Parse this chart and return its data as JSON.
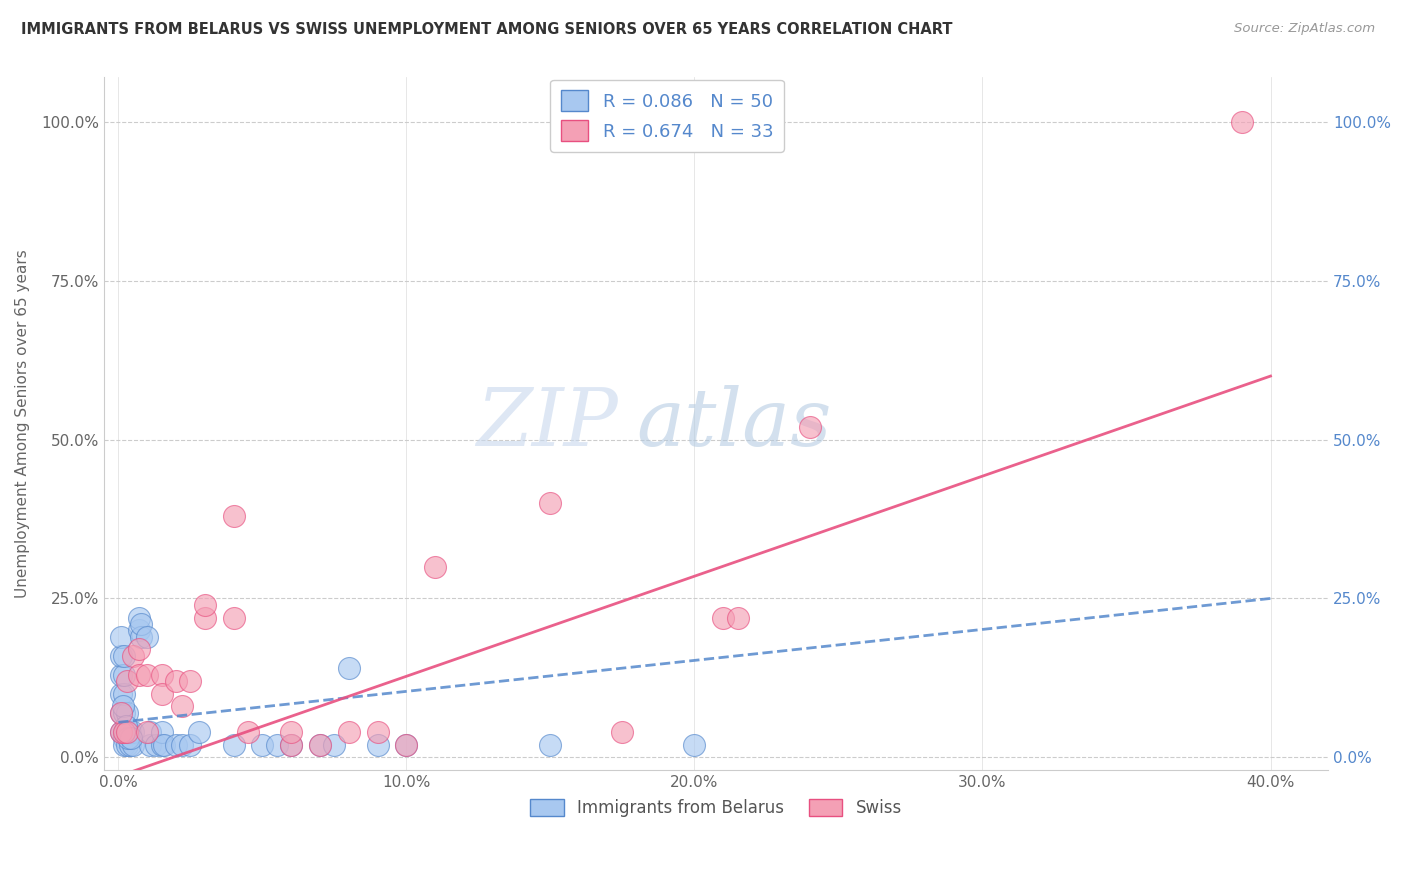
{
  "title": "IMMIGRANTS FROM BELARUS VS SWISS UNEMPLOYMENT AMONG SENIORS OVER 65 YEARS CORRELATION CHART",
  "source": "Source: ZipAtlas.com",
  "ylabel": "Unemployment Among Seniors over 65 years",
  "xlabel_ticks": [
    "0.0%",
    "10.0%",
    "20.0%",
    "30.0%",
    "40.0%"
  ],
  "xlabel_vals": [
    0.0,
    10.0,
    20.0,
    30.0,
    40.0
  ],
  "ylabel_ticks": [
    "0.0%",
    "25.0%",
    "50.0%",
    "75.0%",
    "100.0%"
  ],
  "ylabel_vals": [
    0.0,
    25.0,
    50.0,
    75.0,
    100.0
  ],
  "xlim": [
    -0.5,
    42.0
  ],
  "ylim": [
    -2.0,
    107.0
  ],
  "watermark_zip": "ZIP",
  "watermark_atlas": "atlas",
  "legend_label_blue": "Immigrants from Belarus",
  "legend_label_pink": "Swiss",
  "R_blue": "0.086",
  "N_blue": "50",
  "R_pink": "0.674",
  "N_pink": "33",
  "blue_color": "#A8C8F0",
  "pink_color": "#F4A0B5",
  "blue_edge_color": "#5588CC",
  "pink_edge_color": "#E85080",
  "blue_line_color": "#5588CC",
  "pink_line_color": "#E85080",
  "right_axis_color": "#5588CC",
  "blue_scatter": [
    [
      0.1,
      4.0
    ],
    [
      0.1,
      7.0
    ],
    [
      0.1,
      10.0
    ],
    [
      0.1,
      13.0
    ],
    [
      0.1,
      16.0
    ],
    [
      0.1,
      19.0
    ],
    [
      0.2,
      4.0
    ],
    [
      0.2,
      7.0
    ],
    [
      0.2,
      10.0
    ],
    [
      0.2,
      13.0
    ],
    [
      0.2,
      16.0
    ],
    [
      0.2,
      3.0
    ],
    [
      0.2,
      2.0
    ],
    [
      0.3,
      4.0
    ],
    [
      0.3,
      7.0
    ],
    [
      0.3,
      2.0
    ],
    [
      0.4,
      2.0
    ],
    [
      0.4,
      4.0
    ],
    [
      0.5,
      2.0
    ],
    [
      0.5,
      4.0
    ],
    [
      0.7,
      20.0
    ],
    [
      0.7,
      22.0
    ],
    [
      0.8,
      19.0
    ],
    [
      0.8,
      21.0
    ],
    [
      1.0,
      19.0
    ],
    [
      1.1,
      2.0
    ],
    [
      1.1,
      4.0
    ],
    [
      1.3,
      2.0
    ],
    [
      1.5,
      2.0
    ],
    [
      1.5,
      4.0
    ],
    [
      1.6,
      2.0
    ],
    [
      2.0,
      2.0
    ],
    [
      2.2,
      2.0
    ],
    [
      2.5,
      2.0
    ],
    [
      2.8,
      4.0
    ],
    [
      4.0,
      2.0
    ],
    [
      5.0,
      2.0
    ],
    [
      5.5,
      2.0
    ],
    [
      6.0,
      2.0
    ],
    [
      7.0,
      2.0
    ],
    [
      7.5,
      2.0
    ],
    [
      8.0,
      14.0
    ],
    [
      9.0,
      2.0
    ],
    [
      10.0,
      2.0
    ],
    [
      15.0,
      2.0
    ],
    [
      20.0,
      2.0
    ],
    [
      0.15,
      8.0
    ],
    [
      0.25,
      5.0
    ],
    [
      0.35,
      3.0
    ],
    [
      0.45,
      3.0
    ]
  ],
  "pink_scatter": [
    [
      0.1,
      4.0
    ],
    [
      0.1,
      7.0
    ],
    [
      0.2,
      4.0
    ],
    [
      0.3,
      4.0
    ],
    [
      0.3,
      12.0
    ],
    [
      0.5,
      16.0
    ],
    [
      0.7,
      17.0
    ],
    [
      0.7,
      13.0
    ],
    [
      1.0,
      13.0
    ],
    [
      1.0,
      4.0
    ],
    [
      1.5,
      13.0
    ],
    [
      1.5,
      10.0
    ],
    [
      2.0,
      12.0
    ],
    [
      2.2,
      8.0
    ],
    [
      2.5,
      12.0
    ],
    [
      3.0,
      22.0
    ],
    [
      3.0,
      24.0
    ],
    [
      4.0,
      22.0
    ],
    [
      4.0,
      38.0
    ],
    [
      4.5,
      4.0
    ],
    [
      6.0,
      2.0
    ],
    [
      6.0,
      4.0
    ],
    [
      7.0,
      2.0
    ],
    [
      8.0,
      4.0
    ],
    [
      9.0,
      4.0
    ],
    [
      10.0,
      2.0
    ],
    [
      11.0,
      30.0
    ],
    [
      15.0,
      40.0
    ],
    [
      17.5,
      4.0
    ],
    [
      21.0,
      22.0
    ],
    [
      21.5,
      22.0
    ],
    [
      24.0,
      52.0
    ],
    [
      39.0,
      100.0
    ]
  ],
  "blue_trend": [
    0.0,
    40.0,
    5.5,
    25.0
  ],
  "pink_trend": [
    0.0,
    40.0,
    -3.0,
    60.0
  ]
}
